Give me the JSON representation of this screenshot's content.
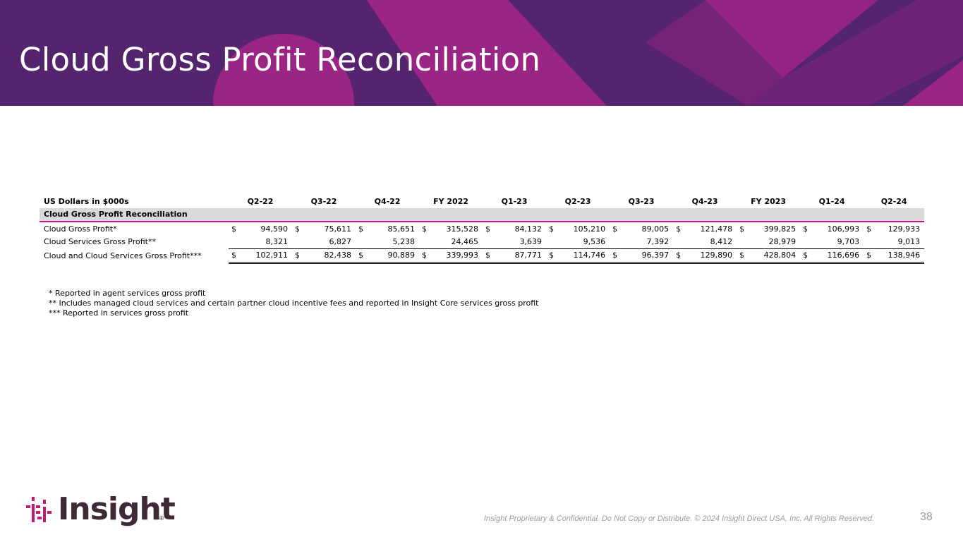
{
  "slide": {
    "title": "Cloud Gross Profit Reconciliation",
    "page_number": "38",
    "footer": "Insight Proprietary & Confidential. Do Not Copy or Distribute. © 2024 Insight Direct USA, Inc. All Rights Reserved."
  },
  "colors": {
    "banner": "#55246e",
    "accent_magenta": "#c2198c",
    "section_fill": "#d9d9d9"
  },
  "logo": {
    "wordmark": "Insight",
    "registered": "®"
  },
  "table": {
    "corner_label": "US Dollars in $000s",
    "periods": [
      "Q2-22",
      "Q3-22",
      "Q4-22",
      "FY 2022",
      "Q1-23",
      "Q2-23",
      "Q3-23",
      "Q4-23",
      "FY 2023",
      "Q1-24",
      "Q2-24"
    ],
    "section": "Cloud Gross Profit Reconciliation",
    "rows": [
      {
        "label": "Cloud Gross Profit*",
        "currency": "$",
        "values": [
          "94,590",
          "75,611",
          "85,651",
          "315,528",
          "84,132",
          "105,210",
          "89,005",
          "121,478",
          "399,825",
          "106,993",
          "129,933"
        ]
      },
      {
        "label": "Cloud Services Gross Profit**",
        "currency": "",
        "values": [
          "8,321",
          "6,827",
          "5,238",
          "24,465",
          "3,639",
          "9,536",
          "7,392",
          "8,412",
          "28,979",
          "9,703",
          "9,013"
        ]
      },
      {
        "label": "Cloud and Cloud Services Gross Profit***",
        "currency": "$",
        "values": [
          "102,911",
          "82,438",
          "90,889",
          "339,993",
          "87,771",
          "114,746",
          "96,397",
          "129,890",
          "428,804",
          "116,696",
          "138,946"
        ]
      }
    ]
  },
  "notes": [
    "* Reported in agent services gross profit",
    "** Includes managed cloud services and certain partner cloud incentive fees and reported in Insight Core services gross profit",
    "*** Reported in services gross profit"
  ]
}
